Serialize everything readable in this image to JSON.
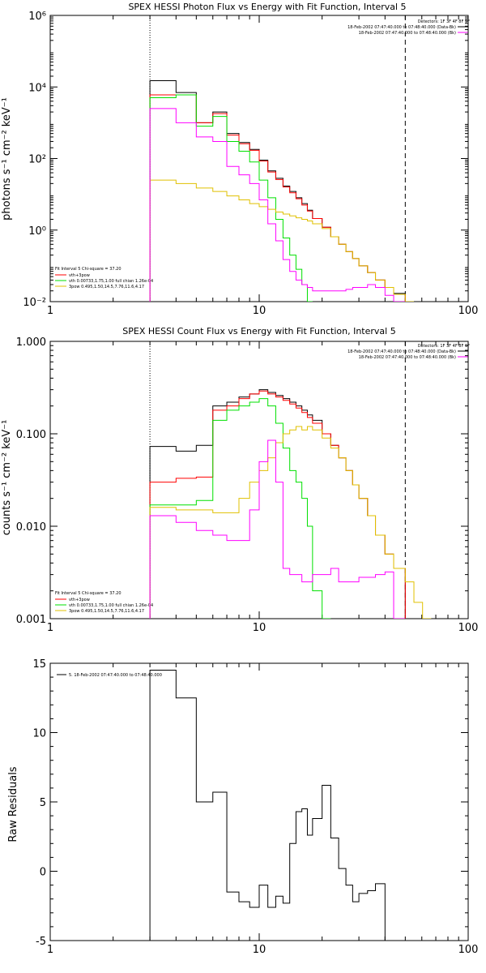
{
  "chart_data": [
    {
      "type": "line",
      "title": "SPEX HESSI Photon Flux vs Energy with Fit Function, Interval 5",
      "ylabel": "photons s⁻¹ cm⁻² keV⁻¹",
      "xlabel": "",
      "x_scale": "log",
      "y_scale": "log",
      "xlim": [
        1,
        100
      ],
      "ylim": [
        0.01,
        1000000
      ],
      "x_ticks": [
        1,
        10,
        100
      ],
      "x_tick_labels": [
        "1",
        "10",
        "100"
      ],
      "y_ticks": [
        0.01,
        1,
        100,
        10000,
        1000000
      ],
      "y_tick_labels": [
        "10⁻²",
        "10⁰",
        "10²",
        "10⁴",
        "10⁶"
      ],
      "vlines": [
        {
          "x": 3,
          "style": "dotted"
        },
        {
          "x": 50,
          "style": "dashed"
        }
      ],
      "header_text": [
        "Detectors: 1F 3F 4F 8F 9F",
        "18-Feb-2002 07:47:40.000 to 07:48:40.000 (Data-Bk)",
        "18-Feb-2002 07:47:40.000 to 07:48:40.000 (Bk)"
      ],
      "legend_header": "Fit Interval 5   Chi-square = 37.20",
      "legend": [
        {
          "label": "vth+3pow",
          "color": "#ff0000"
        },
        {
          "label": "vth 0.00733,1.75,1.00  full chian 1.26e-04",
          "color": "#00e000"
        },
        {
          "label": "3pow 0.495,1.50,14.5,7.76,11.6,4.17",
          "color": "#e0c000"
        }
      ],
      "edges": [
        3,
        4,
        5,
        6,
        7,
        8,
        9,
        10,
        11,
        12,
        13,
        14,
        15,
        16,
        17,
        18,
        20,
        22,
        24,
        26,
        28,
        30,
        33,
        36,
        40,
        44,
        50
      ],
      "series": [
        {
          "name": "Data-Bk",
          "color": "#000000",
          "values": [
            15000,
            7000,
            1000,
            2000,
            500,
            280,
            180,
            90,
            45,
            28,
            17,
            12,
            8,
            5.5,
            3.6,
            2.1,
            1.2,
            0.65,
            0.4,
            0.25,
            0.16,
            0.1,
            0.065,
            0.04,
            0.025,
            0.017
          ]
        },
        {
          "name": "vth+3pow",
          "color": "#ff0000",
          "values": [
            6000,
            6000,
            1000,
            1800,
            450,
            260,
            170,
            85,
            42,
            26,
            16,
            11,
            7.5,
            5,
            3.4,
            2.1,
            1.2,
            0.65,
            0.4,
            0.25,
            0.16,
            0.1,
            0.065,
            0.04,
            0.025,
            0.016
          ]
        },
        {
          "name": "vth",
          "color": "#00e000",
          "values": [
            5000,
            6000,
            800,
            1500,
            300,
            160,
            80,
            25,
            8,
            2,
            0.6,
            0.2,
            0.08,
            0.03,
            0.01
          ]
        },
        {
          "name": "3pow",
          "color": "#e0c000",
          "values": [
            25,
            20,
            15,
            12,
            9,
            7,
            5.5,
            4.5,
            3.8,
            3.2,
            2.8,
            2.5,
            2.2,
            2,
            1.8,
            1.5,
            1.1,
            0.65,
            0.4,
            0.25,
            0.16,
            0.1,
            0.065,
            0.04,
            0.025,
            0.016,
            0.01
          ]
        },
        {
          "name": "Bk",
          "color": "#ff00ff",
          "values": [
            2500,
            1000,
            400,
            300,
            60,
            35,
            20,
            7,
            1.5,
            0.5,
            0.15,
            0.07,
            0.04,
            0.03,
            0.025,
            0.02,
            0.02,
            0.02,
            0.02,
            0.022,
            0.025,
            0.025,
            0.03,
            0.025,
            0.015,
            0.006
          ]
        }
      ]
    },
    {
      "type": "line",
      "title": "SPEX HESSI Count Flux vs Energy with Fit Function, Interval 5",
      "ylabel": "counts s⁻¹ cm⁻² keV⁻¹",
      "xlabel": "",
      "x_scale": "log",
      "y_scale": "log",
      "xlim": [
        1,
        100
      ],
      "ylim": [
        0.001,
        1
      ],
      "x_ticks": [
        1,
        10,
        100
      ],
      "x_tick_labels": [
        "1",
        "10",
        "100"
      ],
      "y_ticks": [
        0.001,
        0.01,
        0.1,
        1
      ],
      "y_tick_labels": [
        "0.001",
        "0.010",
        "0.100",
        "1.000"
      ],
      "vlines": [
        {
          "x": 3,
          "style": "dotted"
        },
        {
          "x": 50,
          "style": "dashed"
        }
      ],
      "header_text": [
        "Detectors: 1F 3F 4F 8F 9F",
        "18-Feb-2002 07:47:40.000 to 07:48:40.000 (Data-Bk)",
        "18-Feb-2002 07:47:40.000 to 07:48:40.000 (Bk)"
      ],
      "legend_header": "Fit Interval 5   Chi-square = 37.20",
      "legend": [
        {
          "label": "vth+3pow",
          "color": "#ff0000"
        },
        {
          "label": "vth 0.00733,1.75,1.00  full chian 1.26e-04",
          "color": "#00e000"
        },
        {
          "label": "3pow 0.495,1.50,14.5,7.76,11.6,4.17",
          "color": "#e0c000"
        }
      ],
      "edges": [
        3,
        4,
        5,
        6,
        7,
        8,
        9,
        10,
        11,
        12,
        13,
        14,
        15,
        16,
        17,
        18,
        20,
        22,
        24,
        26,
        28,
        30,
        33,
        36,
        40,
        44,
        50
      ],
      "series": [
        {
          "name": "Data-Bk",
          "color": "#000000",
          "values": [
            0.073,
            0.065,
            0.075,
            0.2,
            0.22,
            0.25,
            0.27,
            0.3,
            0.28,
            0.26,
            0.24,
            0.22,
            0.2,
            0.18,
            0.16,
            0.14,
            0.1,
            0.075,
            0.055,
            0.04,
            0.028,
            0.02,
            0.013,
            0.008,
            0.005,
            0.0035
          ]
        },
        {
          "name": "vth+3pow",
          "color": "#ff0000",
          "values": [
            0.03,
            0.033,
            0.034,
            0.18,
            0.2,
            0.24,
            0.27,
            0.29,
            0.27,
            0.25,
            0.23,
            0.21,
            0.19,
            0.17,
            0.15,
            0.13,
            0.1,
            0.075,
            0.055,
            0.04,
            0.028,
            0.02,
            0.013,
            0.008,
            0.005,
            0.0035
          ]
        },
        {
          "name": "vth",
          "color": "#00e000",
          "values": [
            0.017,
            0.017,
            0.019,
            0.14,
            0.18,
            0.2,
            0.22,
            0.24,
            0.2,
            0.13,
            0.07,
            0.04,
            0.03,
            0.02,
            0.01,
            0.002,
            0.0009
          ]
        },
        {
          "name": "3pow",
          "color": "#e0c000",
          "values": [
            0.016,
            0.015,
            0.015,
            0.014,
            0.014,
            0.02,
            0.03,
            0.04,
            0.055,
            0.08,
            0.1,
            0.11,
            0.12,
            0.11,
            0.12,
            0.11,
            0.09,
            0.07,
            0.055,
            0.04,
            0.028,
            0.02,
            0.013,
            0.008,
            0.005,
            0.0035,
            0.0025,
            0.0015,
            0.001
          ]
        },
        {
          "name": "Bk",
          "color": "#ff00ff",
          "values": [
            0.013,
            0.011,
            0.009,
            0.008,
            0.007,
            0.007,
            0.015,
            0.05,
            0.085,
            0.03,
            0.0035,
            0.003,
            0.003,
            0.0025,
            0.0025,
            0.003,
            0.003,
            0.0035,
            0.0025,
            0.0025,
            0.0025,
            0.0028,
            0.0028,
            0.003,
            0.0032,
            0.001
          ]
        }
      ]
    },
    {
      "type": "line",
      "title": "",
      "ylabel": "Raw Residuals",
      "xlabel": "",
      "x_scale": "log",
      "y_scale": "linear",
      "xlim": [
        1,
        100
      ],
      "ylim": [
        -5,
        15
      ],
      "x_ticks": [
        1,
        10,
        100
      ],
      "x_tick_labels": [
        "1",
        "10",
        "100"
      ],
      "y_ticks": [
        -5,
        0,
        5,
        10,
        15
      ],
      "y_tick_labels": [
        "-5",
        "0",
        "5",
        "10",
        "15"
      ],
      "legend": [
        {
          "label": "5. 18-Feb-2002 07:47:40.000 to 07:48:40.000",
          "color": "#000000"
        }
      ],
      "edges": [
        3,
        4,
        5,
        6,
        7,
        8,
        9,
        10,
        11,
        12,
        13,
        14,
        15,
        16,
        17,
        18,
        20,
        22,
        24,
        26,
        28,
        30,
        33,
        36,
        40,
        44,
        50
      ],
      "series": [
        {
          "name": "",
          "color": "#000000",
          "values": [
            14.5,
            12.5,
            5.0,
            5.7,
            -1.5,
            -2.2,
            -2.6,
            -1.0,
            -2.6,
            -1.8,
            -2.3,
            2.0,
            4.3,
            4.5,
            2.6,
            3.8,
            6.2,
            2.4,
            0.2,
            -1.0,
            -2.2,
            -1.6,
            -1.4,
            -0.9,
            -5.0,
            -5.0
          ]
        }
      ]
    }
  ]
}
